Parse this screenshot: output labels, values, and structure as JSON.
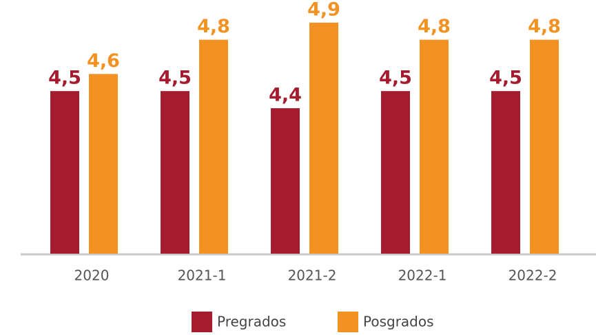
{
  "chart_data": {
    "type": "bar",
    "categories": [
      "2020",
      "2021-1",
      "2021-2",
      "2022-1",
      "2022-2"
    ],
    "series": [
      {
        "name": "Pregrados",
        "color": "#a51c2e",
        "values": [
          4.5,
          4.5,
          4.4,
          4.5,
          4.5
        ],
        "value_labels": [
          "4,5",
          "4,5",
          "4,4",
          "4,5",
          "4,5"
        ]
      },
      {
        "name": "Posgrados",
        "color": "#f29223",
        "values": [
          4.6,
          4.8,
          4.9,
          4.8,
          4.8
        ],
        "value_labels": [
          "4,6",
          "4,8",
          "4,9",
          "4,8",
          "4,8"
        ]
      }
    ],
    "ylim": [
      3.55,
      5.0
    ],
    "legend": "bottom"
  }
}
